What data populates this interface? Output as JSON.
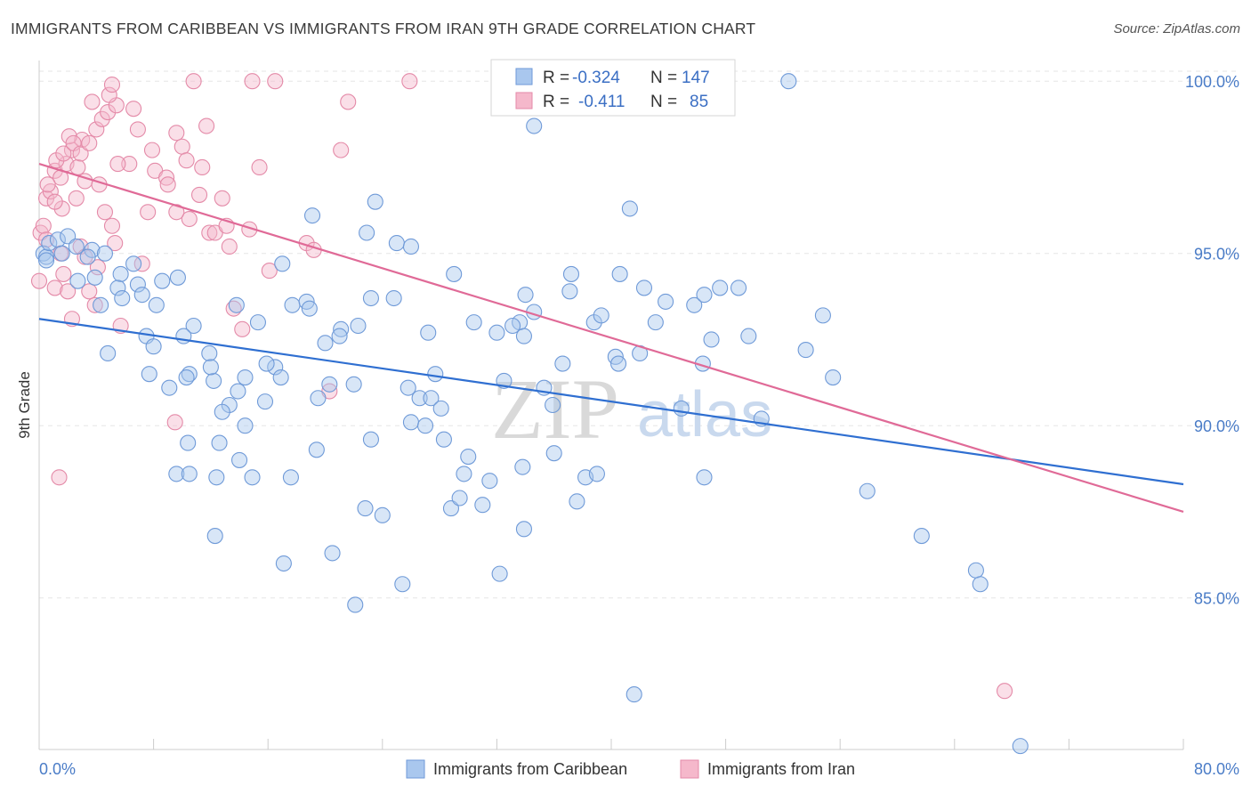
{
  "title": "IMMIGRANTS FROM CARIBBEAN VS IMMIGRANTS FROM IRAN 9TH GRADE CORRELATION CHART",
  "source": "Source: ZipAtlas.com",
  "watermark": {
    "part1": "ZIP",
    "part2": "atlas"
  },
  "colors": {
    "blue_fill": "#a9c7ee",
    "blue_stroke": "#6f9ad8",
    "blue_line": "#2f6fd1",
    "pink_fill": "#f5b8cb",
    "pink_stroke": "#e48aa8",
    "pink_line": "#e06a97",
    "axis_text": "#4a7cc7",
    "grid": "#e6e6e6"
  },
  "chart_data": {
    "type": "scatter",
    "xlabel": "",
    "ylabel": "9th Grade",
    "xlim": [
      0,
      80
    ],
    "ylim": [
      80.6,
      100.6
    ],
    "x_tick_labels": [
      "0.0%",
      "80.0%"
    ],
    "y_ticks": [
      85,
      90,
      95,
      100
    ],
    "y_tick_labels": [
      "85.0%",
      "90.0%",
      "95.0%",
      "100.0%"
    ],
    "grid": "horizontal dashed",
    "legend_top": [
      {
        "r_label": "R =",
        "r": "-0.324",
        "n_label": "N =",
        "n": "147"
      },
      {
        "r_label": "R =",
        "r": "-0.411",
        "n_label": "N =",
        "n": "85"
      }
    ],
    "series": [
      {
        "name": "Immigrants from Caribbean",
        "color": "#a9c7ee",
        "trend": {
          "x": [
            0,
            80
          ],
          "y": [
            93.1,
            88.3
          ]
        },
        "points": [
          [
            0.3,
            95.0
          ],
          [
            0.5,
            94.9
          ],
          [
            0.7,
            95.3
          ],
          [
            1.3,
            95.4
          ],
          [
            2.0,
            95.5
          ],
          [
            2.6,
            95.2
          ],
          [
            0.5,
            94.8
          ],
          [
            3.7,
            95.1
          ],
          [
            1.6,
            95.0
          ],
          [
            2.7,
            94.2
          ],
          [
            3.4,
            94.9
          ],
          [
            4.6,
            95.0
          ],
          [
            3.9,
            94.3
          ],
          [
            5.7,
            94.4
          ],
          [
            6.6,
            94.7
          ],
          [
            8.6,
            94.2
          ],
          [
            9.7,
            94.3
          ],
          [
            4.3,
            93.5
          ],
          [
            5.5,
            94.0
          ],
          [
            6.9,
            94.1
          ],
          [
            7.2,
            93.8
          ],
          [
            5.8,
            93.7
          ],
          [
            8.2,
            93.5
          ],
          [
            10.8,
            92.9
          ],
          [
            13.8,
            93.5
          ],
          [
            15.3,
            93.0
          ],
          [
            17.7,
            93.5
          ],
          [
            18.7,
            93.6
          ],
          [
            17.0,
            94.7
          ],
          [
            18.9,
            93.4
          ],
          [
            20.0,
            92.4
          ],
          [
            21.1,
            92.8
          ],
          [
            21.0,
            92.6
          ],
          [
            22.3,
            92.9
          ],
          [
            23.2,
            93.7
          ],
          [
            16.5,
            91.7
          ],
          [
            15.9,
            91.8
          ],
          [
            14.4,
            91.4
          ],
          [
            12.2,
            91.3
          ],
          [
            7.7,
            91.5
          ],
          [
            9.1,
            91.1
          ],
          [
            10.5,
            91.5
          ],
          [
            10.3,
            91.4
          ],
          [
            4.8,
            92.1
          ],
          [
            7.5,
            92.6
          ],
          [
            8.0,
            92.3
          ],
          [
            10.1,
            92.6
          ],
          [
            11.9,
            92.1
          ],
          [
            12.0,
            91.7
          ],
          [
            13.9,
            91.0
          ],
          [
            13.3,
            90.6
          ],
          [
            12.8,
            90.4
          ],
          [
            14.4,
            90.0
          ],
          [
            15.8,
            90.7
          ],
          [
            16.9,
            91.4
          ],
          [
            20.3,
            91.2
          ],
          [
            22.0,
            91.2
          ],
          [
            19.5,
            90.8
          ],
          [
            10.4,
            89.5
          ],
          [
            12.6,
            89.5
          ],
          [
            14.0,
            89.0
          ],
          [
            9.6,
            88.6
          ],
          [
            10.5,
            88.6
          ],
          [
            12.4,
            88.5
          ],
          [
            14.9,
            88.5
          ],
          [
            17.6,
            88.5
          ],
          [
            19.4,
            89.3
          ],
          [
            23.2,
            89.6
          ],
          [
            22.8,
            87.6
          ],
          [
            24.0,
            87.4
          ],
          [
            17.1,
            86.0
          ],
          [
            12.3,
            86.8
          ],
          [
            20.5,
            86.3
          ],
          [
            22.1,
            84.8
          ],
          [
            25.4,
            85.4
          ],
          [
            23.5,
            96.5
          ],
          [
            22.9,
            95.6
          ],
          [
            25.0,
            95.3
          ],
          [
            26.0,
            95.2
          ],
          [
            19.1,
            96.1
          ],
          [
            24.8,
            93.7
          ],
          [
            27.2,
            92.7
          ],
          [
            30.4,
            93.0
          ],
          [
            33.6,
            93.0
          ],
          [
            32.0,
            92.7
          ],
          [
            33.1,
            92.9
          ],
          [
            33.9,
            92.6
          ],
          [
            34.6,
            93.3
          ],
          [
            29.0,
            94.4
          ],
          [
            34.0,
            93.8
          ],
          [
            37.2,
            94.4
          ],
          [
            37.1,
            93.9
          ],
          [
            38.8,
            93.0
          ],
          [
            36.6,
            91.8
          ],
          [
            35.3,
            91.1
          ],
          [
            35.9,
            90.6
          ],
          [
            32.5,
            91.3
          ],
          [
            27.7,
            91.5
          ],
          [
            25.8,
            91.1
          ],
          [
            26.6,
            90.8
          ],
          [
            27.4,
            90.8
          ],
          [
            26.0,
            90.1
          ],
          [
            28.1,
            90.5
          ],
          [
            27.0,
            90.0
          ],
          [
            28.3,
            89.6
          ],
          [
            30.0,
            89.1
          ],
          [
            29.7,
            88.6
          ],
          [
            31.5,
            88.4
          ],
          [
            33.8,
            88.8
          ],
          [
            36.0,
            89.2
          ],
          [
            28.8,
            87.6
          ],
          [
            29.4,
            87.9
          ],
          [
            31.0,
            87.7
          ],
          [
            37.6,
            87.8
          ],
          [
            33.9,
            87.0
          ],
          [
            32.2,
            85.7
          ],
          [
            38.2,
            88.5
          ],
          [
            39.0,
            88.6
          ],
          [
            34.6,
            98.7
          ],
          [
            39.3,
            93.2
          ],
          [
            40.3,
            92.0
          ],
          [
            40.5,
            91.8
          ],
          [
            40.6,
            94.4
          ],
          [
            42.3,
            94.0
          ],
          [
            43.8,
            93.6
          ],
          [
            43.1,
            93.0
          ],
          [
            42.0,
            92.1
          ],
          [
            45.8,
            93.5
          ],
          [
            46.5,
            93.8
          ],
          [
            46.4,
            91.8
          ],
          [
            47.0,
            92.5
          ],
          [
            47.6,
            94.0
          ],
          [
            48.9,
            94.0
          ],
          [
            49.6,
            92.6
          ],
          [
            44.9,
            90.5
          ],
          [
            50.5,
            90.2
          ],
          [
            54.8,
            93.2
          ],
          [
            53.6,
            92.2
          ],
          [
            55.5,
            91.4
          ],
          [
            46.5,
            88.5
          ],
          [
            57.9,
            88.1
          ],
          [
            61.7,
            86.8
          ],
          [
            65.5,
            85.8
          ],
          [
            65.8,
            85.4
          ],
          [
            41.3,
            96.3
          ],
          [
            52.4,
            100.0
          ],
          [
            41.6,
            82.2
          ],
          [
            68.6,
            80.7
          ]
        ]
      },
      {
        "name": "Immigrants from Iran",
        "color": "#f5b8cb",
        "trend": {
          "x": [
            0,
            80
          ],
          "y": [
            97.6,
            87.5
          ]
        },
        "points": [
          [
            0.0,
            94.2
          ],
          [
            0.1,
            95.6
          ],
          [
            0.3,
            95.8
          ],
          [
            0.5,
            96.6
          ],
          [
            0.8,
            96.8
          ],
          [
            1.1,
            97.4
          ],
          [
            1.5,
            97.2
          ],
          [
            1.9,
            97.6
          ],
          [
            2.3,
            98.0
          ],
          [
            2.7,
            97.5
          ],
          [
            3.0,
            98.3
          ],
          [
            0.6,
            97.0
          ],
          [
            1.2,
            97.7
          ],
          [
            1.7,
            97.9
          ],
          [
            2.1,
            98.4
          ],
          [
            2.4,
            98.2
          ],
          [
            2.9,
            97.9
          ],
          [
            3.5,
            98.2
          ],
          [
            4.0,
            98.6
          ],
          [
            4.4,
            98.9
          ],
          [
            4.8,
            99.1
          ],
          [
            5.4,
            99.3
          ],
          [
            3.7,
            99.4
          ],
          [
            4.9,
            99.6
          ],
          [
            5.1,
            99.9
          ],
          [
            6.6,
            99.2
          ],
          [
            6.9,
            98.6
          ],
          [
            9.6,
            98.5
          ],
          [
            11.7,
            98.7
          ],
          [
            10.0,
            98.1
          ],
          [
            6.3,
            97.6
          ],
          [
            7.9,
            98.0
          ],
          [
            8.1,
            97.4
          ],
          [
            8.9,
            97.2
          ],
          [
            9.0,
            97.0
          ],
          [
            10.3,
            97.7
          ],
          [
            3.2,
            97.1
          ],
          [
            4.2,
            97.0
          ],
          [
            4.6,
            96.2
          ],
          [
            5.1,
            95.8
          ],
          [
            1.6,
            96.3
          ],
          [
            2.6,
            96.6
          ],
          [
            1.1,
            96.5
          ],
          [
            0.5,
            95.4
          ],
          [
            1.5,
            95.0
          ],
          [
            2.9,
            95.2
          ],
          [
            3.2,
            94.9
          ],
          [
            4.1,
            94.6
          ],
          [
            5.3,
            95.3
          ],
          [
            1.7,
            94.4
          ],
          [
            1.1,
            94.0
          ],
          [
            2.0,
            93.9
          ],
          [
            3.5,
            93.9
          ],
          [
            3.9,
            93.5
          ],
          [
            11.9,
            95.6
          ],
          [
            12.3,
            95.6
          ],
          [
            13.1,
            95.8
          ],
          [
            14.7,
            95.7
          ],
          [
            13.3,
            95.2
          ],
          [
            12.8,
            96.6
          ],
          [
            11.2,
            96.7
          ],
          [
            10.5,
            96.0
          ],
          [
            11.4,
            97.5
          ],
          [
            15.4,
            97.5
          ],
          [
            18.7,
            95.3
          ],
          [
            19.2,
            95.1
          ],
          [
            16.1,
            94.5
          ],
          [
            7.2,
            94.7
          ],
          [
            9.6,
            96.2
          ],
          [
            7.6,
            96.2
          ],
          [
            13.6,
            93.4
          ],
          [
            14.2,
            92.8
          ],
          [
            5.7,
            92.9
          ],
          [
            2.3,
            93.1
          ],
          [
            10.8,
            100.0
          ],
          [
            14.9,
            100.0
          ],
          [
            16.5,
            100.0
          ],
          [
            25.9,
            100.0
          ],
          [
            21.6,
            99.4
          ],
          [
            21.1,
            98.0
          ],
          [
            5.5,
            97.6
          ],
          [
            1.4,
            88.5
          ],
          [
            9.5,
            90.1
          ],
          [
            20.3,
            91.0
          ],
          [
            67.5,
            82.3
          ]
        ]
      }
    ]
  }
}
